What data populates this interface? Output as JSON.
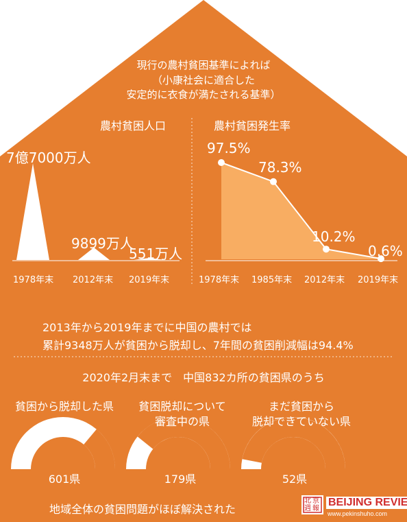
{
  "header": {
    "line1": "現行の農村貧困基準によれば",
    "line2": "（小康社会に適合した",
    "line3": "安定的に衣食が満たされる基準）"
  },
  "population_chart": {
    "title": "農村貧困人口",
    "labels": [
      "7億7000万人",
      "9899万人",
      "551万人"
    ],
    "years": [
      "1978年末",
      "2012年末",
      "2019年末"
    ]
  },
  "incidence_chart": {
    "title": "農村貧困発生率",
    "labels": [
      "97.5%",
      "78.3%",
      "10.2%",
      "0.6%"
    ],
    "years": [
      "1978年末",
      "1985年末",
      "2012年末",
      "2019年末"
    ]
  },
  "chart_data": [
    {
      "type": "bar",
      "categories": [
        "1978年末",
        "2012年末",
        "2019年末"
      ],
      "values": [
        77000,
        9899,
        551
      ],
      "title": "農村貧困人口",
      "value_labels": [
        "7億7000万人",
        "9899万人",
        "551万人"
      ]
    },
    {
      "type": "area",
      "x": [
        "1978年末",
        "1985年末",
        "2012年末",
        "2019年末"
      ],
      "values": [
        97.5,
        78.3,
        10.2,
        0.6
      ],
      "title": "農村貧困発生率",
      "value_labels": [
        "97.5%",
        "78.3%",
        "10.2%",
        "0.6%"
      ]
    },
    {
      "type": "pie",
      "title": "2020年2月末まで　中国832カ所の貧困県のうち",
      "categories": [
        "貧困から脱却した県",
        "貧困脱却について審査中の県",
        "まだ貧困から脱却できていない県"
      ],
      "values": [
        601,
        179,
        52
      ],
      "total": 832
    }
  ],
  "statement": {
    "line1": "2013年から2019年までに中国の農村では",
    "line2": "累計9348万人が貧困から脱却し、7年間の貧困削減幅は94.4%"
  },
  "counties": {
    "heading": "2020年2月末まで　中国832カ所の貧困県のうち",
    "items": [
      {
        "label1": "貧困から脱却した県",
        "label2": "",
        "count": "601県",
        "value": 601
      },
      {
        "label1": "貧困脱却について",
        "label2": "審査中の県",
        "count": "179県",
        "value": 179
      },
      {
        "label1": "まだ貧困から",
        "label2": "脱却できていない県",
        "count": "52県",
        "value": 52
      }
    ],
    "total": 832
  },
  "footer": {
    "text": "地域全体の貧困問題がほぼ解決された",
    "logo_chinese": "北京週報",
    "logo_main": "BEIJING REVIEW",
    "logo_url": "www.pekinshuho.com"
  },
  "colors": {
    "orange": "#E67E2F",
    "area_fill": "#F8AD62",
    "white": "#FFFFFF"
  }
}
